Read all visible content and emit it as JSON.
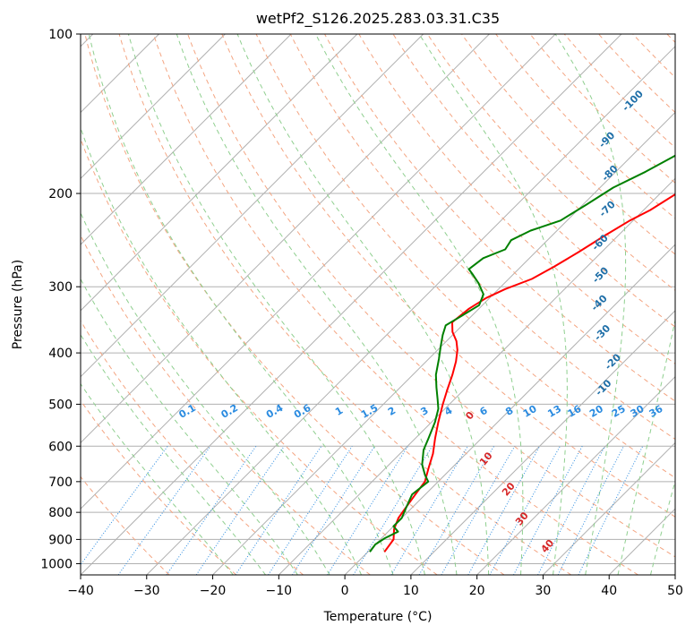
{
  "chart_data": {
    "type": "line",
    "title": "wetPf2_S126.2025.283.03.31.C35",
    "xlabel": "Temperature (°C)",
    "ylabel": "Pressure (hPa)",
    "xlim": [
      -40,
      50
    ],
    "ylim": [
      1050,
      100
    ],
    "x_ticks": [
      -40,
      -30,
      -20,
      -10,
      0,
      10,
      20,
      30,
      40,
      50
    ],
    "x_tick_labels": [
      "−40",
      "−30",
      "−20",
      "−10",
      "0",
      "10",
      "20",
      "30",
      "40",
      "50"
    ],
    "y_ticks": [
      1000,
      900,
      800,
      700,
      600,
      500,
      400,
      300,
      200,
      100
    ],
    "y_tick_labels": [
      "1000",
      "900",
      "800",
      "700",
      "600",
      "500",
      "400",
      "300",
      "200",
      "100"
    ],
    "grid": true,
    "series": [
      {
        "name": "Temperature",
        "color": "#ff0000",
        "points": [
          [
            2.5,
            950
          ],
          [
            2.0,
            900
          ],
          [
            0.5,
            860
          ],
          [
            -0.5,
            820
          ],
          [
            -1.0,
            780
          ],
          [
            -1.5,
            740
          ],
          [
            -2.0,
            700
          ],
          [
            -3.5,
            660
          ],
          [
            -5.0,
            620
          ],
          [
            -7.0,
            580
          ],
          [
            -9.0,
            540
          ],
          [
            -11.0,
            500
          ],
          [
            -12.5,
            470
          ],
          [
            -14.0,
            440
          ],
          [
            -15.5,
            415
          ],
          [
            -17.0,
            395
          ],
          [
            -18.5,
            380
          ],
          [
            -20.5,
            365
          ],
          [
            -22.0,
            350
          ],
          [
            -21.5,
            330
          ],
          [
            -20.5,
            315
          ],
          [
            -19.0,
            303
          ],
          [
            -16.5,
            290
          ],
          [
            -15.0,
            275
          ],
          [
            -13.5,
            258
          ],
          [
            -12.0,
            240
          ],
          [
            -10.5,
            225
          ],
          [
            -9.0,
            215
          ],
          [
            -7.5,
            200
          ],
          [
            -6.0,
            185
          ],
          [
            -5.0,
            175
          ],
          [
            -3.5,
            165
          ],
          [
            -2.0,
            155
          ],
          [
            -0.5,
            145
          ],
          [
            1.0,
            137
          ],
          [
            3.0,
            128
          ],
          [
            5.5,
            118
          ],
          [
            7.5,
            110
          ],
          [
            9.0,
            104
          ],
          [
            9.0,
            100
          ]
        ]
      },
      {
        "name": "Dewpoint",
        "color": "#008000",
        "points": [
          [
            0.3,
            950
          ],
          [
            0.0,
            920
          ],
          [
            0.5,
            895
          ],
          [
            1.5,
            870
          ],
          [
            0.0,
            850
          ],
          [
            0.0,
            820
          ],
          [
            -1.0,
            780
          ],
          [
            -2.0,
            740
          ],
          [
            -1.5,
            700
          ],
          [
            -3.0,
            680
          ],
          [
            -5.0,
            650
          ],
          [
            -7.0,
            610
          ],
          [
            -8.0,
            580
          ],
          [
            -9.5,
            540
          ],
          [
            -11.0,
            510
          ],
          [
            -12.5,
            490
          ],
          [
            -14.5,
            465
          ],
          [
            -16.5,
            440
          ],
          [
            -18.5,
            410
          ],
          [
            -20.0,
            390
          ],
          [
            -21.5,
            370
          ],
          [
            -22.5,
            355
          ],
          [
            -21.5,
            340
          ],
          [
            -20.5,
            325
          ],
          [
            -21.5,
            310
          ],
          [
            -24.0,
            295
          ],
          [
            -26.0,
            285
          ],
          [
            -27.5,
            278
          ],
          [
            -27.0,
            265
          ],
          [
            -25.0,
            255
          ],
          [
            -25.5,
            245
          ],
          [
            -24.0,
            235
          ],
          [
            -21.0,
            225
          ],
          [
            -19.5,
            210
          ],
          [
            -18.0,
            195
          ],
          [
            -15.5,
            182
          ],
          [
            -13.5,
            170
          ],
          [
            -13.0,
            160
          ],
          [
            -11.5,
            150
          ],
          [
            -9.5,
            135
          ],
          [
            -7.5,
            122
          ],
          [
            -5.5,
            110
          ],
          [
            -3.5,
            100
          ]
        ]
      }
    ],
    "dry_adiabat_labels": [
      "-100",
      "-90",
      "-80",
      "-70",
      "-60",
      "-50",
      "-40",
      "-30",
      "-20",
      "-10"
    ],
    "moist_adiabat_labels": [
      "0",
      "10",
      "20",
      "30",
      "40"
    ],
    "mixing_ratio_labels": [
      "0.1",
      "0.2",
      "0.4",
      "0.6",
      "1",
      "1.5",
      "2",
      "3",
      "4",
      "6",
      "8",
      "10",
      "13",
      "16",
      "20",
      "25",
      "30",
      "36"
    ],
    "mixing_ratio_values": [
      0.1,
      0.2,
      0.4,
      0.6,
      1,
      1.5,
      2,
      3,
      4,
      6,
      8,
      10,
      13,
      16,
      20,
      25,
      30,
      36
    ],
    "background_line_colors": {
      "isotherm": "#b0b0b0",
      "isobar": "#b0b0b0",
      "dry_adiabat": "#f4a582",
      "moist_adiabat": "#8fcf8f",
      "mixing_ratio": "#2a8be0"
    }
  }
}
